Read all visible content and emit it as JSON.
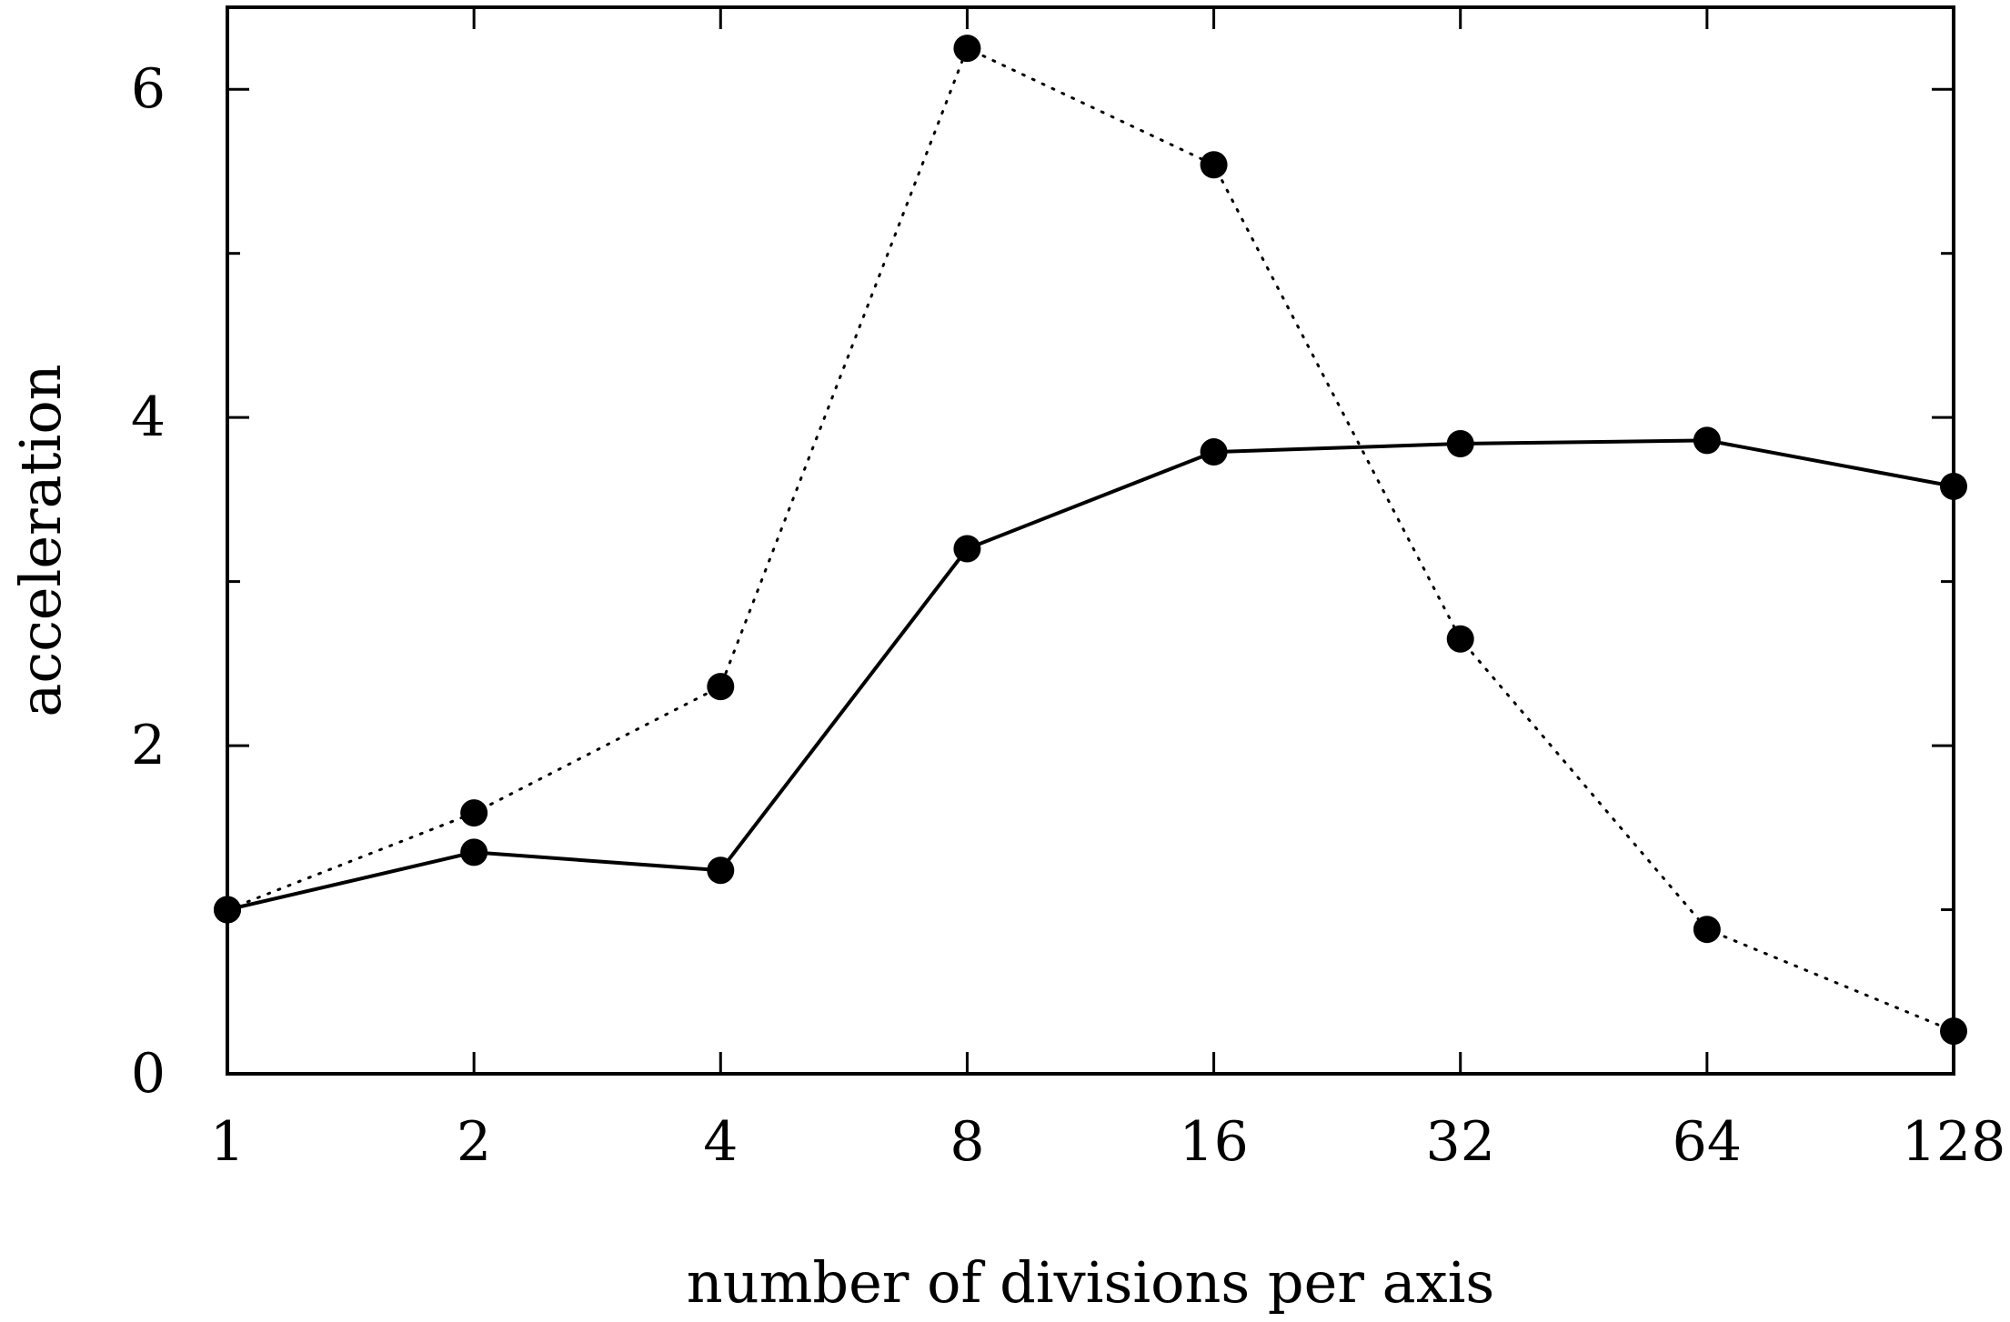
{
  "chart_data": {
    "type": "line",
    "title": "",
    "xlabel": "number of divisions per axis",
    "ylabel": "acceleration",
    "x_scale": "log2",
    "x": [
      1,
      2,
      4,
      8,
      16,
      32,
      64,
      128
    ],
    "xticks": [
      "1",
      "2",
      "4",
      "8",
      "16",
      "32",
      "64",
      "128"
    ],
    "ylim": [
      0,
      6.5
    ],
    "yticks": [
      0,
      2,
      4,
      6
    ],
    "y_minor_ticks": [
      1,
      3,
      5
    ],
    "grid": false,
    "legend": "none",
    "series": [
      {
        "style": "solid",
        "marker": "filled-circle",
        "color": "#000000",
        "values": [
          1.0,
          1.35,
          1.24,
          3.2,
          3.79,
          3.84,
          3.86,
          3.58
        ]
      },
      {
        "style": "dotted",
        "marker": "filled-circle",
        "color": "#000000",
        "values": [
          1.0,
          1.59,
          2.36,
          6.25,
          5.54,
          2.65,
          0.88,
          0.26
        ]
      }
    ]
  }
}
